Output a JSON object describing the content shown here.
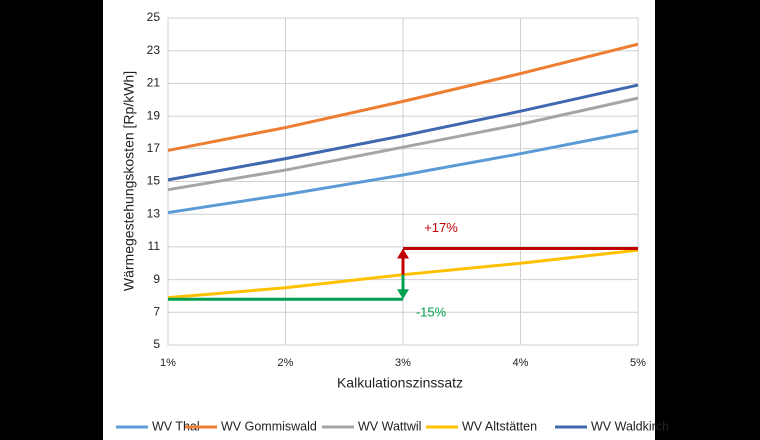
{
  "chart_data": {
    "type": "line",
    "x_label": "Kalkulationszinssatz",
    "y_label": "Wärmegestehungskosten [Rp/kWh]",
    "x": [
      1,
      2,
      3,
      4,
      5
    ],
    "series": [
      {
        "name": "WV Thal",
        "color": "#5b9bd5",
        "values": [
          13.1,
          14.2,
          15.4,
          16.7,
          18.1
        ]
      },
      {
        "name": "WV Gommiswald",
        "color": "#ed7d31",
        "values": [
          16.9,
          18.3,
          19.9,
          21.6,
          23.4
        ]
      },
      {
        "name": "WV Wattwil",
        "color": "#a5a5a5",
        "values": [
          14.5,
          15.7,
          17.1,
          18.5,
          20.1
        ]
      },
      {
        "name": "WV Altstätten",
        "color": "#ffc000",
        "values": [
          7.9,
          8.5,
          9.3,
          10.0,
          10.8
        ]
      },
      {
        "name": "WV Waldkirch",
        "color": "#4068b0",
        "values": [
          15.1,
          16.4,
          17.8,
          19.3,
          20.9
        ]
      }
    ],
    "annotations": [
      {
        "text": "+17%",
        "color": "#c00000",
        "y": 10.9,
        "x": [
          3,
          5
        ]
      },
      {
        "text": "-15%",
        "color": "#00a050",
        "y": 7.8,
        "x": [
          1,
          3
        ]
      }
    ],
    "xlim": [
      1,
      5
    ],
    "xticks": [
      {
        "value": 1,
        "label": "1%"
      },
      {
        "value": 2,
        "label": "2%"
      },
      {
        "value": 3,
        "label": "3%"
      },
      {
        "value": 4,
        "label": "4%"
      },
      {
        "value": 5,
        "label": "5%"
      }
    ],
    "ylim": [
      5,
      25
    ],
    "yticks": [
      5,
      7,
      9,
      11,
      13,
      15,
      17,
      19,
      21,
      23,
      25
    ],
    "grid": true,
    "legend": "bottom"
  }
}
